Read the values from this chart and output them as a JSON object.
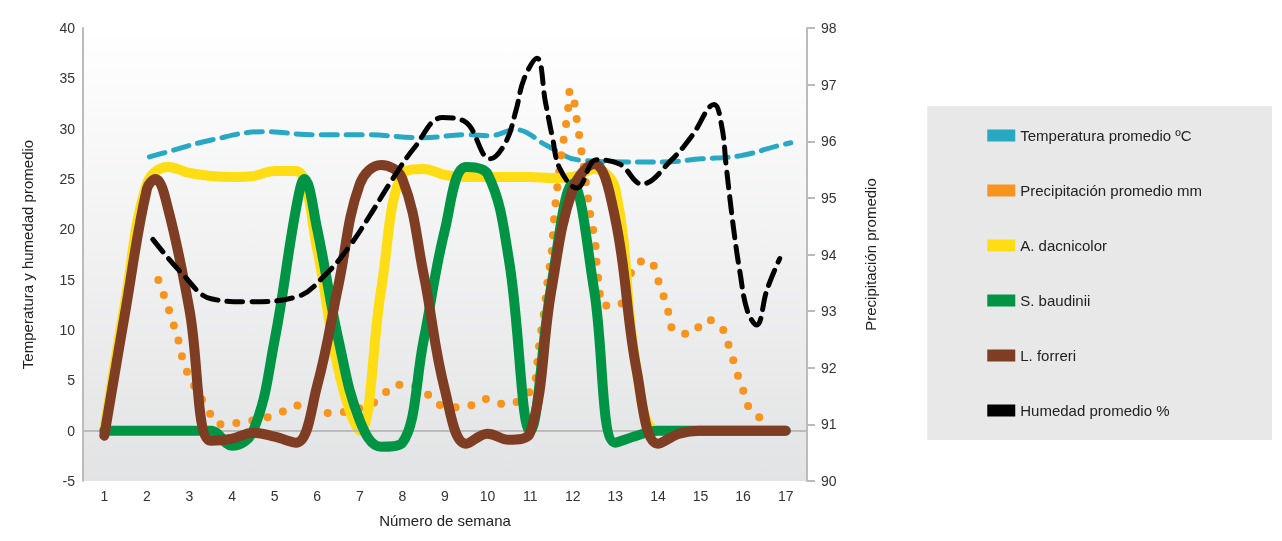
{
  "chart_data": {
    "type": "line",
    "xlabel": "Número de semana",
    "ylabel": "Temperatura y humedad promedio",
    "y2label": "Precipitación promedio",
    "xlim": [
      0.5,
      17.5
    ],
    "xticks": [
      1,
      2,
      3,
      4,
      5,
      6,
      7,
      8,
      9,
      10,
      11,
      12,
      13,
      14,
      15,
      16,
      17
    ],
    "ylim": [
      -5,
      40
    ],
    "yticks": [
      -5,
      0,
      5,
      10,
      15,
      20,
      25,
      30,
      35,
      40
    ],
    "y2lim": [
      90,
      98
    ],
    "y2ticks": [
      90,
      91,
      92,
      93,
      94,
      95,
      96,
      97,
      98
    ],
    "grid": false,
    "legend": "right",
    "marker": "none",
    "ref_lines": [
      {
        "axis": "y",
        "value": 0,
        "color": "#bbbbbb"
      }
    ],
    "series": [
      {
        "name": "Temperatura promedio ºC",
        "color": "#29a8c4",
        "line_style": "dashed",
        "x": [
          2.06,
          2.4,
          3.54,
          4.73,
          5.92,
          7.11,
          8.49,
          9.5,
          10.06,
          10.66,
          11.4,
          12.12,
          13.26,
          14.12,
          15.02,
          15.92,
          16.82,
          17.12
        ],
        "values": [
          27.2,
          27.6,
          28.9,
          29.7,
          29.4,
          29.4,
          29.1,
          29.4,
          29.3,
          29.9,
          28.3,
          26.9,
          26.7,
          26.7,
          27,
          27.3,
          28.3,
          28.6
        ]
      },
      {
        "name": "Precipitación promedio mm",
        "color": "#f7941d",
        "line_style": "dotted",
        "axis": "y2",
        "x": [
          2.27,
          2.46,
          2.61,
          2.77,
          2.9,
          3.41,
          3.72,
          4.33,
          4.94,
          5.71,
          6.29,
          7.38,
          7.86,
          8.41,
          8.84,
          9.41,
          10.02,
          10.42,
          11.06,
          11.16,
          11.22,
          11.3,
          11.36,
          11.42,
          11.5,
          11.54,
          11.58,
          11.72,
          11.8,
          11.88,
          11.94,
          12.02,
          12.1,
          12.18,
          12.32,
          12.42,
          12.52,
          12.56,
          12.62,
          12.72,
          13.06,
          13.3,
          13.44,
          13.78,
          14,
          14.22,
          14.38,
          14.76,
          15.14,
          15.5,
          15.68,
          15.84,
          16,
          16.18,
          16.56
        ],
        "values": [
          93.55,
          93.15,
          92.8,
          92.4,
          92.0,
          91.3,
          91.0,
          91.05,
          91.15,
          91.35,
          91.2,
          91.4,
          91.7,
          91.65,
          91.35,
          91.3,
          91.45,
          91.35,
          91.65,
          92.05,
          92.45,
          92.85,
          93.2,
          93.6,
          94.0,
          94.4,
          94.8,
          95.7,
          96.1,
          96.5,
          96.9,
          96.75,
          96.35,
          95.95,
          95.2,
          94.65,
          94.25,
          93.85,
          93.45,
          93.1,
          93.1,
          93.45,
          93.8,
          93.9,
          93.55,
          93.05,
          92.65,
          92.6,
          92.85,
          92.7,
          92.35,
          91.95,
          91.6,
          91.25,
          91.05
        ]
      },
      {
        "name": "A. dacnicolor",
        "color": "#ffdd15",
        "line_style": "solid",
        "x": [
          1,
          1.5,
          2,
          2.5,
          3,
          3.5,
          4,
          4.5,
          5,
          5.5,
          6,
          6.5,
          7,
          7.5,
          8,
          8.5,
          9,
          9.5,
          10,
          10.5,
          11,
          11.5,
          12,
          12.5,
          13,
          13.5,
          14,
          15
        ],
        "values": [
          0,
          13,
          24.5,
          26.2,
          25.6,
          25.3,
          25.2,
          25.3,
          25.8,
          25.8,
          18,
          6,
          0,
          14,
          25.5,
          26,
          25.4,
          25.2,
          25.2,
          25.2,
          25.2,
          25.1,
          25.2,
          26,
          24,
          6,
          0,
          0
        ]
      },
      {
        "name": "S. baudinii",
        "color": "#009444",
        "line_style": "solid",
        "x": [
          1,
          2,
          3,
          3.5,
          4,
          4.5,
          5,
          5.5,
          5.7,
          6,
          6.5,
          7,
          7.5,
          8,
          8.5,
          9,
          9.5,
          10,
          10.5,
          11,
          11.5,
          12,
          12.5,
          13,
          13.5,
          14,
          15,
          16,
          17
        ],
        "values": [
          0,
          0,
          0,
          0,
          -1.5,
          0,
          9,
          22,
          25,
          20,
          9,
          1,
          -1.6,
          -1.2,
          9,
          20,
          26.2,
          25.5,
          17,
          0,
          14.5,
          24.5,
          14,
          -1.2,
          -0.5,
          0,
          0,
          0,
          0
        ]
      },
      {
        "name": "L. forreri",
        "color": "#7f3d23",
        "line_style": "solid",
        "x": [
          1,
          1.5,
          2,
          2.2,
          2.5,
          3,
          3.5,
          4,
          4.5,
          5,
          5.5,
          6,
          6.5,
          7,
          7.5,
          8,
          8.5,
          9,
          9.5,
          10,
          10.5,
          11,
          11.5,
          12,
          12.5,
          13,
          13.5,
          14,
          14.5,
          15,
          16,
          17
        ],
        "values": [
          -0.5,
          12,
          24,
          25,
          22,
          12,
          -1,
          -0.8,
          -0.2,
          -0.6,
          -1.2,
          4.5,
          14.5,
          24.5,
          26.4,
          25,
          15.5,
          4,
          -1.3,
          -0.3,
          -0.9,
          -0.2,
          14,
          24,
          26.5,
          21,
          6,
          -1.3,
          -0.3,
          0,
          0,
          0
        ]
      },
      {
        "name": "Humedad promedio %",
        "color": "#000000",
        "line_style": "dashed",
        "x": [
          2.14,
          2.85,
          3.51,
          4.39,
          5.52,
          6.24,
          6.77,
          7.24,
          7.77,
          8.28,
          8.94,
          9.47,
          10.06,
          10.42,
          10.66,
          10.86,
          11.16,
          11.36,
          11.52,
          11.7,
          12.1,
          12.56,
          13.1,
          13.62,
          14.32,
          14.8,
          15.32,
          15.5,
          15.6,
          15.7,
          15.8,
          15.92,
          16.1,
          16.32,
          16.56,
          16.86
        ],
        "values": [
          19,
          15.5,
          13.1,
          12.8,
          13.3,
          15.7,
          18.4,
          21.4,
          25,
          28.1,
          31.1,
          30.7,
          27,
          28.6,
          31.7,
          35,
          37,
          32.6,
          29.2,
          26,
          24.1,
          26.9,
          26.5,
          24.5,
          26.9,
          29.3,
          32.4,
          30.2,
          26.4,
          22.7,
          19.3,
          15.9,
          11.9,
          10.5,
          14,
          17.1
        ]
      }
    ]
  }
}
